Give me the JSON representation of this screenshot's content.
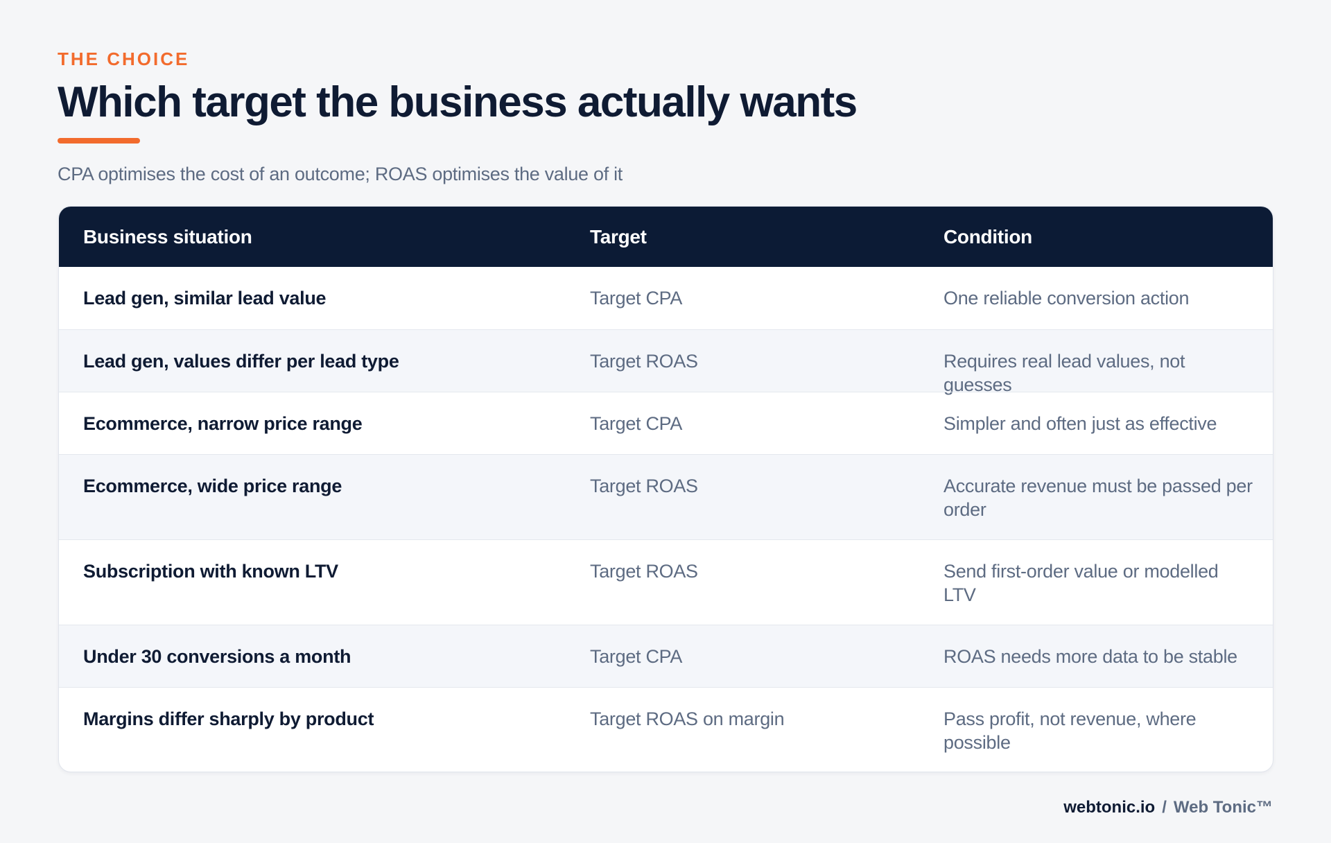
{
  "header": {
    "eyebrow": "THE CHOICE",
    "title": "Which target the business actually wants",
    "subtitle": "CPA optimises the cost of an outcome; ROAS optimises the value of it"
  },
  "table": {
    "columns": [
      "Business situation",
      "Target",
      "Condition"
    ],
    "rows": [
      {
        "situation": "Lead gen, similar lead value",
        "target": "Target CPA",
        "condition": "One reliable conversion action"
      },
      {
        "situation": "Lead gen, values differ per lead type",
        "target": "Target ROAS",
        "condition": "Requires real lead values, not guesses"
      },
      {
        "situation": "Ecommerce, narrow price range",
        "target": "Target CPA",
        "condition": "Simpler and often just as effective"
      },
      {
        "situation": "Ecommerce, wide price range",
        "target": "Target ROAS",
        "condition": "Accurate revenue must be passed per order"
      },
      {
        "situation": "Subscription with known LTV",
        "target": "Target ROAS",
        "condition": "Send first-order value or modelled LTV"
      },
      {
        "situation": "Under 30 conversions a month",
        "target": "Target CPA",
        "condition": "ROAS needs more data to be stable"
      },
      {
        "situation": "Margins differ sharply by product",
        "target": "Target ROAS on margin",
        "condition": "Pass profit, not revenue, where possible"
      }
    ]
  },
  "footer": {
    "domain": "webtonic.io",
    "separator": "/",
    "brand": "Web Tonic™"
  },
  "colors": {
    "accent": "#f26b2d",
    "header_bg": "#0c1b35",
    "title_text": "#0f1b33",
    "muted_text": "#5d6b82",
    "alt_row": "#f4f6fa"
  }
}
